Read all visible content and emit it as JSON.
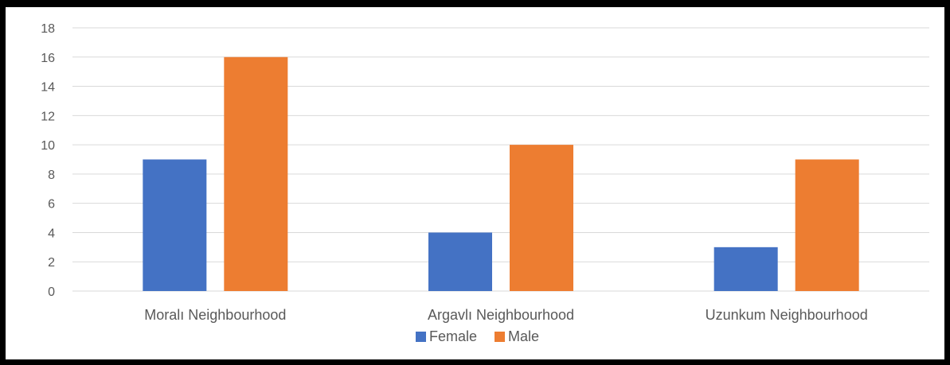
{
  "chart_data": {
    "type": "bar",
    "categories": [
      "Moralı Neighbourhood",
      "Argavlı Neighbourhood",
      "Uzunkum Neighbourhood"
    ],
    "series": [
      {
        "name": "Female",
        "values": [
          9,
          4,
          3
        ],
        "color": "#4472c4"
      },
      {
        "name": "Male",
        "values": [
          16,
          10,
          9
        ],
        "color": "#ed7d31"
      }
    ],
    "title": "",
    "xlabel": "",
    "ylabel": "",
    "ylim": [
      0,
      18
    ],
    "yticks": [
      0,
      2,
      4,
      6,
      8,
      10,
      12,
      14,
      16,
      18
    ],
    "grid": true,
    "legend": "bottom"
  }
}
